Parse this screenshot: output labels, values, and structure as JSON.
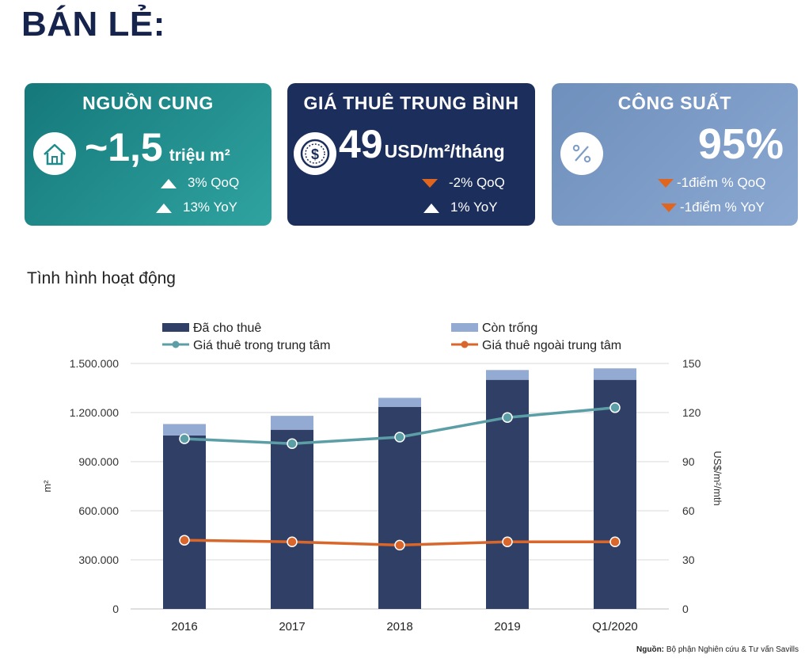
{
  "page": {
    "title": "BÁN LẺ:",
    "subtitle": "Tình hình hoạt động"
  },
  "cards": {
    "supply": {
      "heading": "NGUỒN CUNG",
      "value": "~1,5",
      "unit": "triệu m²",
      "delta1": "3% QoQ",
      "delta2": "13% YoY",
      "icon": "house-icon",
      "color": "#1e8c8c"
    },
    "rent": {
      "heading": "GIÁ THUÊ TRUNG BÌNH",
      "value": "49",
      "unit": "USD/m²/tháng",
      "delta1": "-2% QoQ",
      "delta2": "1% YoY",
      "icon": "dollar-coin-icon",
      "color": "#1d3260"
    },
    "occupancy": {
      "heading": "CÔNG SUẤT",
      "value": "95%",
      "delta1": "-1điểm % QoQ",
      "delta2": "-1điểm % YoY",
      "icon": "percent-icon",
      "color": "#7e9dc6"
    }
  },
  "chart_data": {
    "type": "bar",
    "categories": [
      "2016",
      "2017",
      "2018",
      "2019",
      "Q1/2020"
    ],
    "series": [
      {
        "name": "Đã cho thuê",
        "type": "bar",
        "stack": "s",
        "axis": "left",
        "color": "#2f3f66",
        "values": [
          1060000,
          1095000,
          1235000,
          1400000,
          1400000
        ]
      },
      {
        "name": "Còn trống",
        "type": "bar",
        "stack": "s",
        "axis": "left",
        "color": "#93aad3",
        "values": [
          70000,
          85000,
          55000,
          60000,
          70000
        ]
      },
      {
        "name": "Giá thuê trong trung tâm",
        "type": "line",
        "axis": "right",
        "color": "#5b9ea6",
        "values": [
          104,
          101,
          105,
          117,
          123
        ]
      },
      {
        "name": "Giá thuê ngoài trung tâm",
        "type": "line",
        "axis": "right",
        "color": "#d9662b",
        "values": [
          42,
          41,
          39,
          41,
          41
        ]
      }
    ],
    "ylabel": "m²",
    "y2label": "US$/m²/mth",
    "ylim": [
      0,
      1500000
    ],
    "y2lim": [
      0,
      150
    ],
    "yticks": [
      "0",
      "300.000",
      "600.000",
      "900.000",
      "1.200.000",
      "1.500.000"
    ],
    "y2ticks": [
      "0",
      "30",
      "60",
      "90",
      "120",
      "150"
    ],
    "legend": "top",
    "grid": true
  },
  "source": {
    "label": "Nguồn:",
    "text": "Bộ phận Nghiên cứu & Tư vấn Savills"
  }
}
